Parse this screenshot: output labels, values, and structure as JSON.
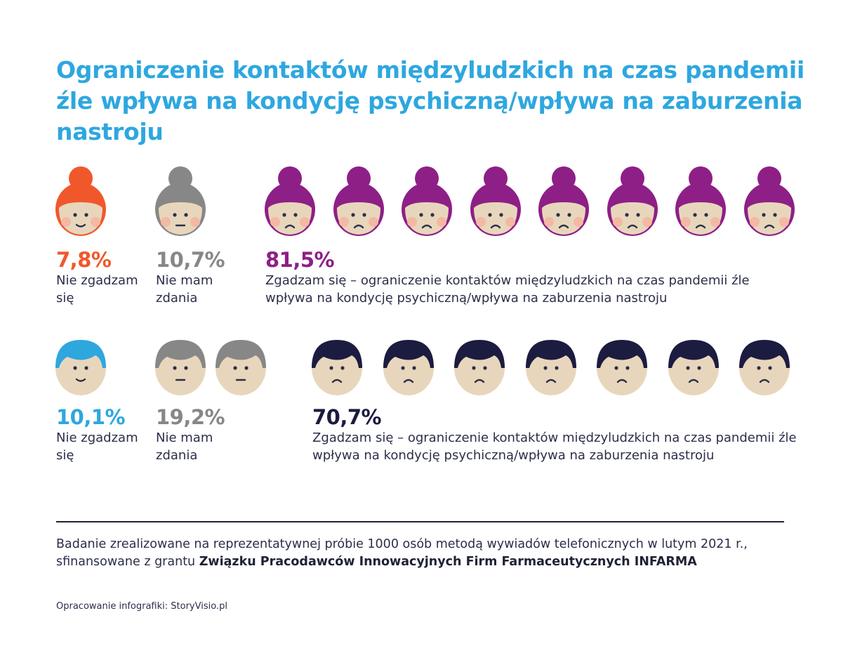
{
  "title": "Ograniczenie kontaktów międzyludzkich na czas pandemii źle wpływa na kondycję psychiczną/wpływa na zaburzenia nastroju",
  "colors": {
    "title": "#2ea7df",
    "skin": "#e8d6bc",
    "cheek": "#f3b9a3",
    "features": "#2b2f4a",
    "female_disagree": "#f0582b",
    "female_neutral": "#878787",
    "female_agree": "#8e1f86",
    "male_disagree": "#2ea7df",
    "male_neutral": "#878787",
    "male_agree": "#1c1b40"
  },
  "chart_data": [
    {
      "type": "pictogram",
      "group": "female",
      "categories": [
        "Nie zgadzam się",
        "Nie mam zdania",
        "Zgadzam się – ograniczenie kontaktów międzyludzkich na czas pandemii źle wpływa na kondycję psychiczną/wpływa na zaburzenia nastroju"
      ],
      "values": [
        7.8,
        10.7,
        81.5
      ],
      "value_labels": [
        "7,8%",
        "10,7%",
        "81,5%"
      ],
      "icon_counts": [
        1,
        1,
        8
      ],
      "icon": "female-face",
      "moods": [
        "smile",
        "neutral",
        "sad"
      ]
    },
    {
      "type": "pictogram",
      "group": "male",
      "categories": [
        "Nie zgadzam się",
        "Nie mam zdania",
        "Zgadzam się – ograniczenie kontaktów międzyludzkich na czas pandemii źle wpływa na kondycję psychiczną/wpływa na zaburzenia nastroju"
      ],
      "values": [
        10.1,
        19.2,
        70.7
      ],
      "value_labels": [
        "10,1%",
        "19,2%",
        "70,7%"
      ],
      "icon_counts": [
        1,
        2,
        7
      ],
      "icon": "male-face",
      "moods": [
        "smile",
        "neutral",
        "sad"
      ]
    }
  ],
  "labels": {
    "f_disagree": "Nie zgadzam się",
    "f_neutral": "Nie mam zdania",
    "f_agree": "Zgadzam się – ograniczenie kontaktów międzyludzkich na czas pandemii źle wpływa na kondycję psychiczną/wpływa na zaburzenia nastroju",
    "m_disagree": "Nie zgadzam się",
    "m_neutral": "Nie mam zdania",
    "m_agree": "Zgadzam się – ograniczenie kontaktów międzyludzkich na czas pandemii źle wpływa na kondycję psychiczną/wpływa na zaburzenia nastroju"
  },
  "footnote": {
    "text_before": "Badanie zrealizowane na reprezentatywnej próbie 1000 osób metodą wywiadów telefonicznych w lutym 2021 r., sfinansowane z grantu ",
    "text_bold": "Związku Pracodawców Innowacyjnych Firm Farmaceutycznych INFARMA"
  },
  "credit": "Opracowanie infografiki: StoryVisio.pl"
}
